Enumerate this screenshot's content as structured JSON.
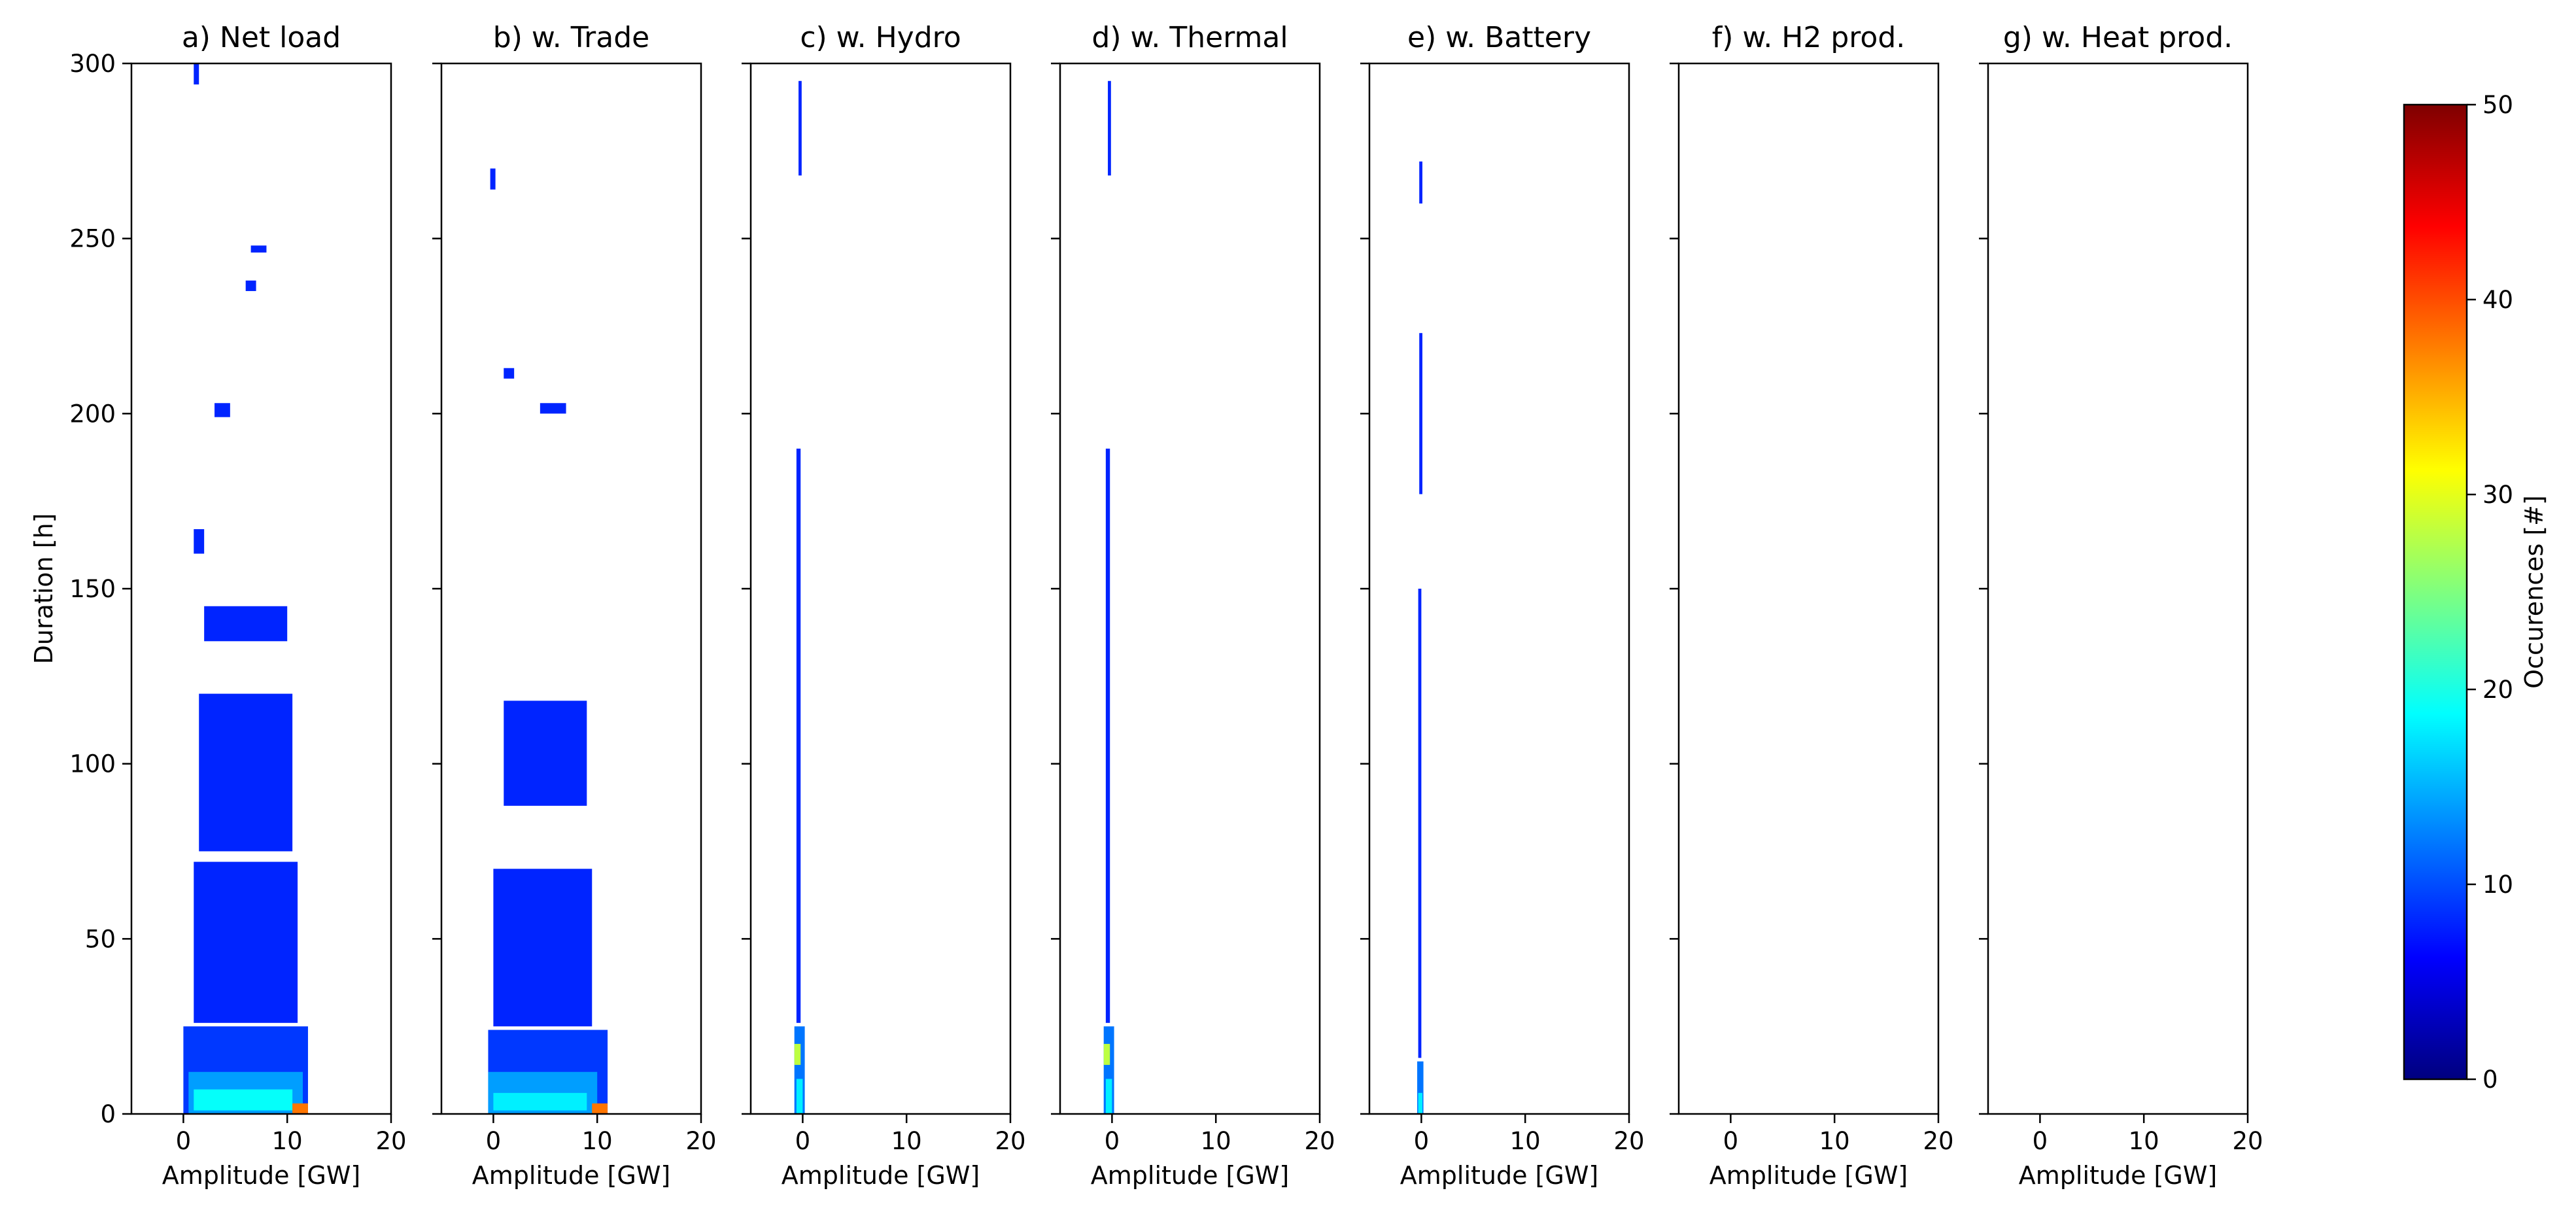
{
  "chart_data": {
    "type": "heatmap",
    "ylabel": "Duration [h]",
    "xlabel": "Amplitude [GW]",
    "xlim": [
      -5,
      20
    ],
    "ylim": [
      0,
      300
    ],
    "xticks": [
      0,
      10,
      20
    ],
    "yticks": [
      0,
      50,
      100,
      150,
      200,
      250,
      300
    ],
    "colorbar": {
      "label": "Occurences [#]",
      "range": [
        0,
        50
      ],
      "ticks": [
        0,
        10,
        20,
        30,
        40,
        50
      ],
      "colormap": "jet",
      "colors": [
        "#00007f",
        "#0000ff",
        "#007fff",
        "#00ffff",
        "#7fff7f",
        "#ffff00",
        "#ff7f00",
        "#ff0000",
        "#7f0000"
      ]
    },
    "panels": [
      {
        "title": "a) Net load",
        "regions": [
          {
            "x": [
              0,
              12
            ],
            "y": [
              0,
              25
            ],
            "value": 9
          },
          {
            "x": [
              0.5,
              11.5
            ],
            "y": [
              0,
              12
            ],
            "value": 14
          },
          {
            "x": [
              1,
              10.5
            ],
            "y": [
              1,
              7
            ],
            "value": 19
          },
          {
            "x": [
              10.5,
              12
            ],
            "y": [
              0,
              3
            ],
            "value": 38
          },
          {
            "x": [
              1,
              11
            ],
            "y": [
              26,
              72
            ],
            "value": 8
          },
          {
            "x": [
              1.5,
              10.5
            ],
            "y": [
              75,
              120
            ],
            "value": 8
          },
          {
            "x": [
              2,
              10
            ],
            "y": [
              135,
              145
            ],
            "value": 8
          },
          {
            "x": [
              1,
              2
            ],
            "y": [
              160,
              167
            ],
            "value": 8
          },
          {
            "x": [
              3,
              4.5
            ],
            "y": [
              199,
              203
            ],
            "value": 8
          },
          {
            "x": [
              6,
              7
            ],
            "y": [
              235,
              238
            ],
            "value": 8
          },
          {
            "x": [
              6.5,
              8
            ],
            "y": [
              246,
              248
            ],
            "value": 8
          },
          {
            "x": [
              1,
              1.5
            ],
            "y": [
              294,
              300
            ],
            "value": 8
          }
        ]
      },
      {
        "title": "b) w. Trade",
        "regions": [
          {
            "x": [
              -0.5,
              11
            ],
            "y": [
              0,
              24
            ],
            "value": 9
          },
          {
            "x": [
              -0.5,
              10
            ],
            "y": [
              0,
              12
            ],
            "value": 14
          },
          {
            "x": [
              0,
              9
            ],
            "y": [
              1,
              6
            ],
            "value": 18
          },
          {
            "x": [
              9.5,
              11
            ],
            "y": [
              0,
              3
            ],
            "value": 38
          },
          {
            "x": [
              0,
              9.5
            ],
            "y": [
              25,
              70
            ],
            "value": 8
          },
          {
            "x": [
              1,
              9
            ],
            "y": [
              88,
              118
            ],
            "value": 8
          },
          {
            "x": [
              4.5,
              7
            ],
            "y": [
              200,
              203
            ],
            "value": 8
          },
          {
            "x": [
              1,
              2
            ],
            "y": [
              210,
              213
            ],
            "value": 8
          },
          {
            "x": [
              -0.3,
              0.2
            ],
            "y": [
              264,
              270
            ],
            "value": 8
          }
        ]
      },
      {
        "title": "c) w. Hydro",
        "regions": [
          {
            "x": [
              -0.8,
              0.2
            ],
            "y": [
              0,
              25
            ],
            "value": 12
          },
          {
            "x": [
              -0.6,
              0
            ],
            "y": [
              0,
              10
            ],
            "value": 18
          },
          {
            "x": [
              -0.8,
              -0.2
            ],
            "y": [
              14,
              20
            ],
            "value": 28
          },
          {
            "x": [
              -0.6,
              -0.2
            ],
            "y": [
              26,
              190
            ],
            "value": 8
          },
          {
            "x": [
              -0.4,
              -0.1
            ],
            "y": [
              268,
              295
            ],
            "value": 8
          }
        ]
      },
      {
        "title": "d) w. Thermal",
        "regions": [
          {
            "x": [
              -0.8,
              0.2
            ],
            "y": [
              0,
              25
            ],
            "value": 12
          },
          {
            "x": [
              -0.6,
              0
            ],
            "y": [
              0,
              10
            ],
            "value": 18
          },
          {
            "x": [
              -0.8,
              -0.2
            ],
            "y": [
              14,
              20
            ],
            "value": 28
          },
          {
            "x": [
              -0.6,
              -0.2
            ],
            "y": [
              26,
              190
            ],
            "value": 8
          },
          {
            "x": [
              -0.4,
              -0.1
            ],
            "y": [
              268,
              295
            ],
            "value": 8
          }
        ]
      },
      {
        "title": "e) w. Battery",
        "regions": [
          {
            "x": [
              -0.4,
              0.2
            ],
            "y": [
              0,
              15
            ],
            "value": 12
          },
          {
            "x": [
              -0.3,
              0.1
            ],
            "y": [
              0,
              6
            ],
            "value": 18
          },
          {
            "x": [
              -0.3,
              0
            ],
            "y": [
              16,
              150
            ],
            "value": 8
          },
          {
            "x": [
              -0.2,
              0.1
            ],
            "y": [
              177,
              223
            ],
            "value": 8
          },
          {
            "x": [
              -0.2,
              0.1
            ],
            "y": [
              260,
              272
            ],
            "value": 8
          }
        ]
      },
      {
        "title": "f) w. H2 prod.",
        "regions": []
      },
      {
        "title": "g) w. Heat prod.",
        "regions": []
      }
    ]
  }
}
